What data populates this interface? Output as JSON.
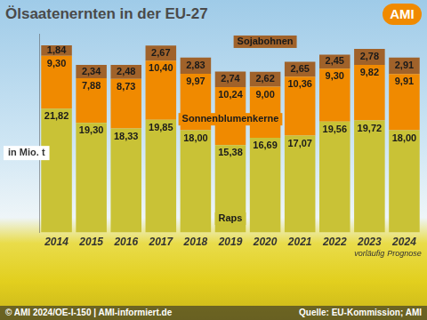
{
  "chart_data": {
    "type": "bar",
    "title": "Ölsaatenernten in der EU-27",
    "logo": "AMI",
    "annotations": [
      "in Mio. t"
    ],
    "credit": "© AMI 2024/OE-I-150 | AMI-informiert.de",
    "source": "Quelle: EU-Kommission; AMI",
    "categories": [
      "2014",
      "2015",
      "2016",
      "2017",
      "2018",
      "2019",
      "2020",
      "2021",
      "2022",
      "2023",
      "2024"
    ],
    "category_notes": [
      null,
      null,
      null,
      null,
      null,
      null,
      null,
      null,
      null,
      "vorläufig",
      "Prognose"
    ],
    "stacked": true,
    "data_labels": true,
    "grid": false,
    "tick_labels": "x",
    "ylim": [
      0,
      35
    ],
    "series": [
      {
        "name": "Raps",
        "color": "#c9c236",
        "values": [
          21.82,
          19.3,
          18.33,
          19.85,
          18.0,
          15.38,
          16.69,
          17.07,
          19.56,
          19.72,
          18.0
        ],
        "value_labels": [
          "21,82",
          "19,30",
          "18,33",
          "19,85",
          "18,00",
          "15,38",
          "16,69",
          "17,07",
          "19,56",
          "19,72",
          "18,00"
        ]
      },
      {
        "name": "Sonnenblumenkerne",
        "color": "#f08a00",
        "values": [
          9.3,
          7.88,
          8.73,
          10.4,
          9.97,
          10.24,
          9.0,
          10.36,
          9.3,
          9.82,
          9.91
        ],
        "value_labels": [
          "9,30",
          "7,88",
          "8,73",
          "10,40",
          "9,97",
          "10,24",
          "9,00",
          "10,36",
          "9,30",
          "9,82",
          "9,91"
        ]
      },
      {
        "name": "Sojabohnen",
        "color": "#a0622a",
        "values": [
          1.84,
          2.34,
          2.48,
          2.67,
          2.83,
          2.74,
          2.62,
          2.65,
          2.45,
          2.78,
          2.91
        ],
        "value_labels": [
          "1,84",
          "2,34",
          "2,48",
          "2,67",
          "2,83",
          "2,74",
          "2,62",
          "2,65",
          "2,45",
          "2,78",
          "2,91"
        ]
      }
    ]
  }
}
